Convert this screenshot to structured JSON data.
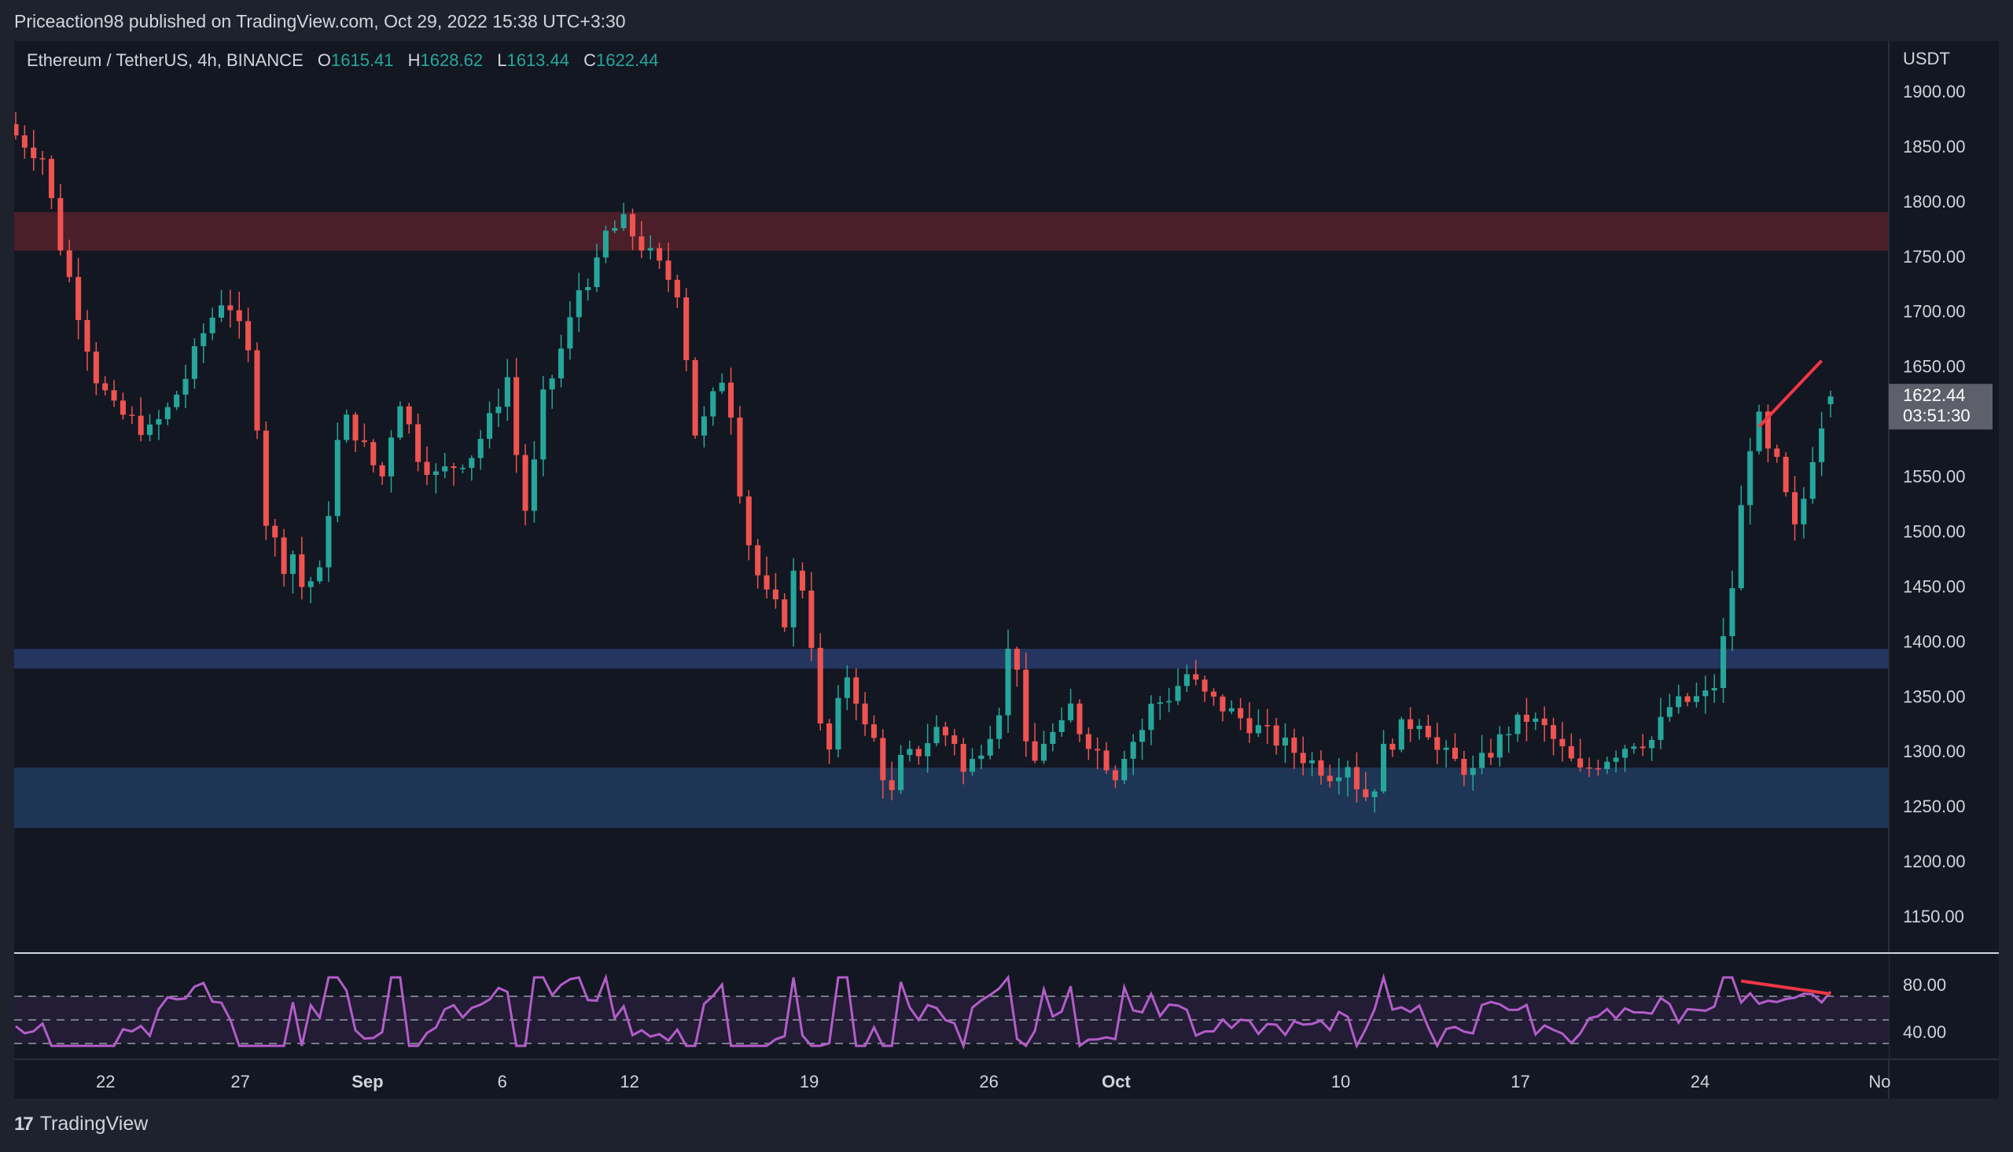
{
  "header": {
    "publisher": "Priceaction98 published on TradingView.com, Oct 29, 2022 15:38 UTC+3:30"
  },
  "legend": {
    "symbol": "Ethereum / TetherUS, 4h, BINANCE",
    "o_label": "O",
    "o_value": "1615.41",
    "h_label": "H",
    "h_value": "1628.62",
    "l_label": "L",
    "l_value": "1613.44",
    "c_label": "C",
    "c_value": "1622.44"
  },
  "price_axis": {
    "currency": "USDT",
    "ticks": [
      "1900.00",
      "1850.00",
      "1800.00",
      "1750.00",
      "1700.00",
      "1650.00",
      "1600.00",
      "1550.00",
      "1500.00",
      "1450.00",
      "1400.00",
      "1350.00",
      "1300.00",
      "1250.00",
      "1200.00",
      "1150.00"
    ],
    "last_price": "1622.44",
    "countdown": "03:51:30"
  },
  "rsi_axis": {
    "ticks": [
      "80.00",
      "40.00"
    ]
  },
  "time_axis": {
    "labels": [
      "22",
      "27",
      "Sep",
      "6",
      "12",
      "19",
      "26",
      "Oct",
      "10",
      "17",
      "24",
      "No"
    ]
  },
  "branding": {
    "name": "TradingView",
    "logo": "17"
  },
  "colors": {
    "up": "#26a69a",
    "down": "#ef5350",
    "resistance_zone": "#4a1f2a",
    "support_zone": "#1e3556",
    "mid_zone": "#24365f",
    "rsi_line": "#b35dc9",
    "annotation": "#f23645"
  },
  "chart_data": {
    "type": "candlestick",
    "symbol": "ETH/USDT",
    "timeframe": "4h",
    "ylim": [
      1120,
      1940
    ],
    "ohlc_last": {
      "open": 1615.41,
      "high": 1628.62,
      "low": 1613.44,
      "close": 1622.44
    },
    "x_ticks": [
      "22",
      "27",
      "Sep",
      "6",
      "12",
      "19",
      "26",
      "Oct",
      "10",
      "17",
      "24",
      "No"
    ],
    "y_ticks": [
      1900,
      1850,
      1800,
      1750,
      1700,
      1650,
      1600,
      1550,
      1500,
      1450,
      1400,
      1350,
      1300,
      1250,
      1200,
      1150
    ],
    "zones": [
      {
        "from": 1755,
        "to": 1790
      },
      {
        "from": 1375,
        "to": 1393
      },
      {
        "from": 1230,
        "to": 1285
      }
    ],
    "trend_line": {
      "from": [
        27,
        1595
      ],
      "to": [
        29,
        1655
      ]
    },
    "close_path": [
      [
        0,
        1860
      ],
      [
        3,
        1840
      ],
      [
        5,
        1760
      ],
      [
        7,
        1700
      ],
      [
        9,
        1640
      ],
      [
        11,
        1610
      ],
      [
        13,
        1600
      ],
      [
        15,
        1590
      ],
      [
        17,
        1610
      ],
      [
        19,
        1640
      ],
      [
        21,
        1680
      ],
      [
        23,
        1710
      ],
      [
        24,
        1705
      ],
      [
        26,
        1660
      ],
      [
        27,
        1600
      ],
      [
        28,
        1510
      ],
      [
        29,
        1490
      ],
      [
        30,
        1470
      ],
      [
        31,
        1480
      ],
      [
        32,
        1450
      ],
      [
        34,
        1460
      ],
      [
        35,
        1520
      ],
      [
        36,
        1580
      ],
      [
        37,
        1600
      ],
      [
        38,
        1590
      ],
      [
        40,
        1560
      ],
      [
        41,
        1550
      ],
      [
        42,
        1590
      ],
      [
        43,
        1620
      ],
      [
        45,
        1570
      ],
      [
        47,
        1550
      ],
      [
        49,
        1560
      ],
      [
        51,
        1570
      ],
      [
        53,
        1600
      ],
      [
        55,
        1640
      ],
      [
        56,
        1570
      ],
      [
        57,
        1520
      ],
      [
        58,
        1560
      ],
      [
        59,
        1620
      ],
      [
        60,
        1640
      ],
      [
        62,
        1690
      ],
      [
        63,
        1720
      ],
      [
        65,
        1740
      ],
      [
        66,
        1770
      ],
      [
        68,
        1780
      ],
      [
        70,
        1760
      ],
      [
        72,
        1740
      ],
      [
        74,
        1720
      ],
      [
        75,
        1660
      ],
      [
        76,
        1590
      ],
      [
        77,
        1600
      ],
      [
        78,
        1620
      ],
      [
        79,
        1640
      ],
      [
        80,
        1610
      ],
      [
        81,
        1540
      ],
      [
        82,
        1490
      ],
      [
        83,
        1460
      ],
      [
        84,
        1440
      ],
      [
        86,
        1420
      ],
      [
        87,
        1460
      ],
      [
        88,
        1450
      ],
      [
        89,
        1400
      ],
      [
        90,
        1320
      ],
      [
        91,
        1300
      ],
      [
        92,
        1340
      ],
      [
        93,
        1370
      ],
      [
        94,
        1350
      ],
      [
        95,
        1320
      ],
      [
        96,
        1310
      ],
      [
        97,
        1280
      ],
      [
        98,
        1260
      ],
      [
        99,
        1290
      ],
      [
        101,
        1300
      ],
      [
        103,
        1320
      ],
      [
        105,
        1310
      ],
      [
        106,
        1280
      ],
      [
        107,
        1290
      ],
      [
        109,
        1320
      ],
      [
        110,
        1340
      ],
      [
        111,
        1390
      ],
      [
        112,
        1380
      ],
      [
        113,
        1300
      ],
      [
        114,
        1290
      ],
      [
        115,
        1310
      ],
      [
        117,
        1320
      ],
      [
        118,
        1340
      ],
      [
        119,
        1320
      ],
      [
        120,
        1310
      ],
      [
        121,
        1300
      ],
      [
        122,
        1290
      ],
      [
        123,
        1280
      ],
      [
        124,
        1300
      ],
      [
        126,
        1320
      ],
      [
        127,
        1340
      ],
      [
        129,
        1350
      ],
      [
        131,
        1370
      ],
      [
        132,
        1360
      ],
      [
        133,
        1350
      ],
      [
        135,
        1340
      ],
      [
        137,
        1330
      ],
      [
        139,
        1320
      ],
      [
        141,
        1310
      ],
      [
        143,
        1300
      ],
      [
        145,
        1290
      ],
      [
        147,
        1280
      ],
      [
        149,
        1290
      ],
      [
        150,
        1270
      ],
      [
        151,
        1260
      ],
      [
        152,
        1270
      ],
      [
        153,
        1300
      ],
      [
        155,
        1320
      ],
      [
        157,
        1330
      ],
      [
        158,
        1320
      ],
      [
        159,
        1300
      ],
      [
        161,
        1290
      ],
      [
        163,
        1280
      ],
      [
        165,
        1300
      ],
      [
        167,
        1320
      ],
      [
        169,
        1330
      ],
      [
        171,
        1320
      ],
      [
        173,
        1300
      ],
      [
        174,
        1290
      ],
      [
        175,
        1280
      ],
      [
        177,
        1290
      ],
      [
        179,
        1300
      ],
      [
        181,
        1310
      ],
      [
        183,
        1310
      ],
      [
        185,
        1340
      ],
      [
        187,
        1345
      ],
      [
        189,
        1350
      ],
      [
        190,
        1360
      ],
      [
        191,
        1400
      ],
      [
        192,
        1450
      ],
      [
        193,
        1520
      ],
      [
        194,
        1580
      ],
      [
        195,
        1600
      ],
      [
        196,
        1570
      ],
      [
        197,
        1560
      ],
      [
        198,
        1530
      ],
      [
        199,
        1500
      ],
      [
        200,
        1530
      ],
      [
        201,
        1570
      ],
      [
        202,
        1600
      ],
      [
        203,
        1622.44
      ]
    ],
    "rsi": {
      "ylim": [
        20,
        100
      ],
      "levels": [
        70,
        50,
        30
      ],
      "ticks": [
        80,
        40
      ],
      "divergence_line": {
        "from": [
          83
        ],
        "to": [
          72
        ]
      }
    }
  }
}
